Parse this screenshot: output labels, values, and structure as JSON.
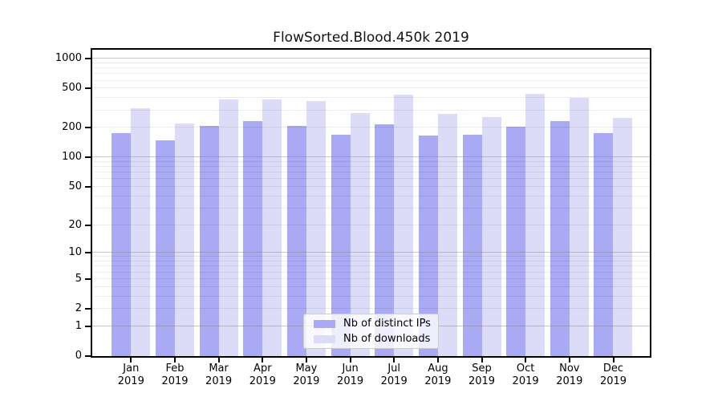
{
  "window": {
    "title": "FlowSorted.Blood.450k 2019"
  },
  "chart_data": {
    "type": "bar",
    "title": "FlowSorted.Blood.450k 2019",
    "xlabel": "",
    "ylabel": "",
    "y_scale": "log1p",
    "ylim": [
      0,
      1230
    ],
    "grid": true,
    "legend_position": "lower center",
    "y_ticks": [
      0,
      1,
      2,
      5,
      10,
      20,
      50,
      100,
      200,
      500,
      1000
    ],
    "categories": [
      {
        "month": "Jan",
        "year": "2019"
      },
      {
        "month": "Feb",
        "year": "2019"
      },
      {
        "month": "Mar",
        "year": "2019"
      },
      {
        "month": "Apr",
        "year": "2019"
      },
      {
        "month": "May",
        "year": "2019"
      },
      {
        "month": "Jun",
        "year": "2019"
      },
      {
        "month": "Jul",
        "year": "2019"
      },
      {
        "month": "Aug",
        "year": "2019"
      },
      {
        "month": "Sep",
        "year": "2019"
      },
      {
        "month": "Oct",
        "year": "2019"
      },
      {
        "month": "Nov",
        "year": "2019"
      },
      {
        "month": "Dec",
        "year": "2019"
      }
    ],
    "series": [
      {
        "name": "Nb of distinct IPs",
        "color": "#a9a9f4",
        "values": [
          178,
          150,
          211,
          236,
          208,
          170,
          217,
          166,
          171,
          204,
          234,
          178
        ]
      },
      {
        "name": "Nb of downloads",
        "color": "#dcdcf8",
        "values": [
          317,
          222,
          385,
          391,
          375,
          280,
          430,
          276,
          257,
          441,
          399,
          252
        ]
      }
    ]
  }
}
